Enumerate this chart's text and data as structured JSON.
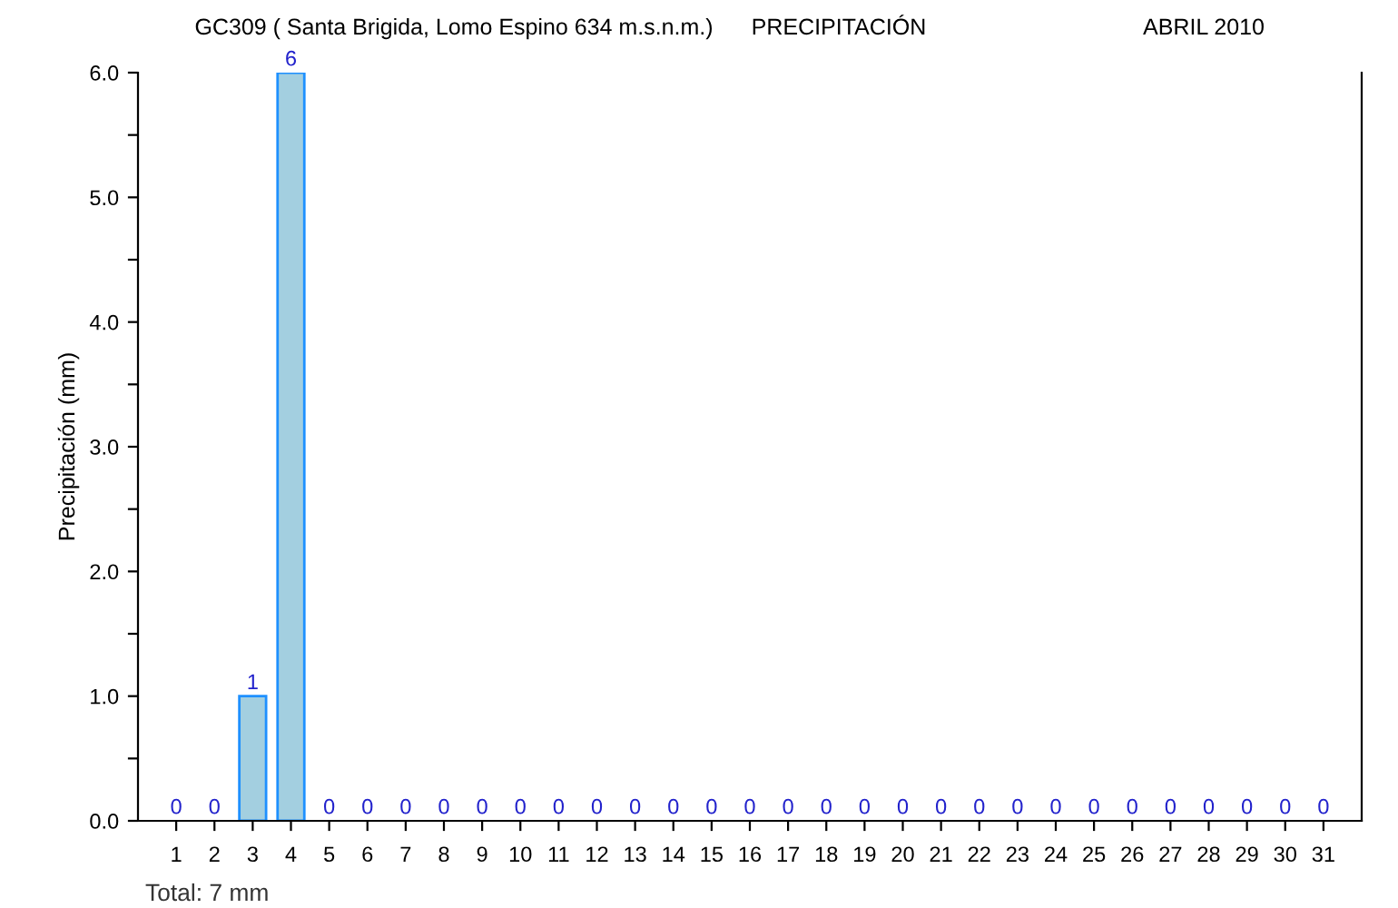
{
  "chart_data": {
    "type": "bar",
    "title": "GC309 ( Santa Brigida, Lomo Espino 634 m.s.n.m.)",
    "subtitle": "PRECIPITACIÓN",
    "ylabel": "Precipitación (mm)",
    "annotations": [
      "ABRIL 2010",
      "Total: 7 mm"
    ],
    "categories": [
      "1",
      "2",
      "3",
      "4",
      "5",
      "6",
      "7",
      "8",
      "9",
      "10",
      "11",
      "12",
      "13",
      "14",
      "15",
      "16",
      "17",
      "18",
      "19",
      "20",
      "21",
      "22",
      "23",
      "24",
      "25",
      "26",
      "27",
      "28",
      "29",
      "30",
      "31"
    ],
    "values": [
      0,
      0,
      1,
      6,
      0,
      0,
      0,
      0,
      0,
      0,
      0,
      0,
      0,
      0,
      0,
      0,
      0,
      0,
      0,
      0,
      0,
      0,
      0,
      0,
      0,
      0,
      0,
      0,
      0,
      0,
      0
    ],
    "color": "#a3cfe0",
    "ylim": [
      0,
      6
    ],
    "yticks": [
      {
        "value": 0,
        "label": "0.0"
      },
      {
        "value": 0.5,
        "label": null
      },
      {
        "value": 1,
        "label": "1.0"
      },
      {
        "value": 1.5,
        "label": null
      },
      {
        "value": 2,
        "label": "2.0"
      },
      {
        "value": 2.5,
        "label": null
      },
      {
        "value": 3,
        "label": "3.0"
      },
      {
        "value": 3.5,
        "label": null
      },
      {
        "value": 4,
        "label": "4.0"
      },
      {
        "value": 4.5,
        "label": null
      },
      {
        "value": 5,
        "label": "5.0"
      },
      {
        "value": 5.5,
        "label": null
      },
      {
        "value": 6,
        "label": "6.0"
      }
    ],
    "data_labels": true,
    "grid": false,
    "legend": false
  }
}
